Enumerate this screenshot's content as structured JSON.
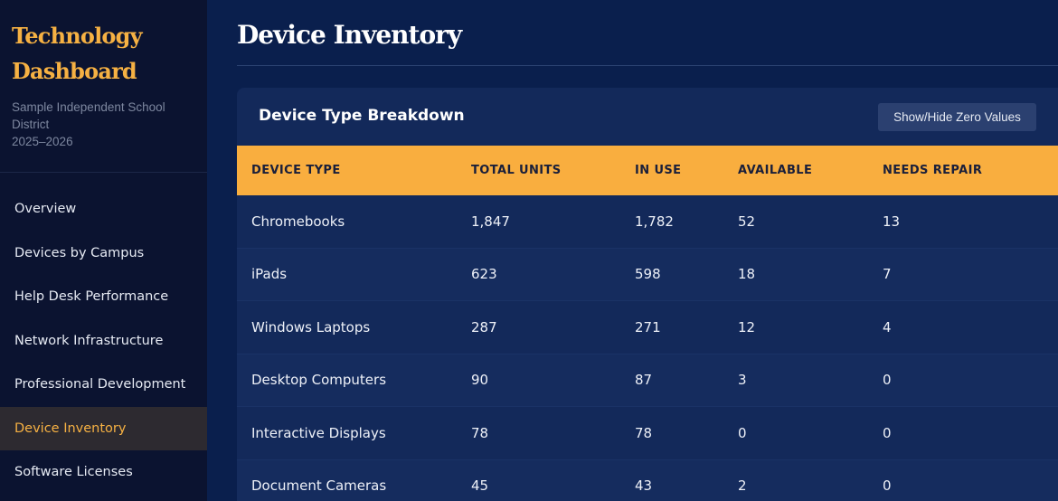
{
  "sidebar": {
    "brand_title_line1": "Technology",
    "brand_title_line2": "Dashboard",
    "district_line1": "Sample Independent School",
    "district_line2": "District",
    "year": "2025–2026",
    "items": [
      {
        "label": "Overview",
        "active": false
      },
      {
        "label": "Devices by Campus",
        "active": false
      },
      {
        "label": "Help Desk Performance",
        "active": false
      },
      {
        "label": "Network Infrastructure",
        "active": false
      },
      {
        "label": "Professional Development",
        "active": false
      },
      {
        "label": "Device Inventory",
        "active": true
      },
      {
        "label": "Software Licenses",
        "active": false
      }
    ]
  },
  "main": {
    "page_title": "Device Inventory",
    "card": {
      "title": "Device Type Breakdown",
      "toggle_button": "Show/Hide Zero Values",
      "columns": [
        "DEVICE TYPE",
        "TOTAL UNITS",
        "IN USE",
        "AVAILABLE",
        "NEEDS REPAIR"
      ],
      "rows": [
        [
          "Chromebooks",
          "1,847",
          "1,782",
          "52",
          "13"
        ],
        [
          "iPads",
          "623",
          "598",
          "18",
          "7"
        ],
        [
          "Windows Laptops",
          "287",
          "271",
          "12",
          "4"
        ],
        [
          "Desktop Computers",
          "90",
          "87",
          "3",
          "0"
        ],
        [
          "Interactive Displays",
          "78",
          "78",
          "0",
          "0"
        ],
        [
          "Document Cameras",
          "45",
          "43",
          "2",
          "0"
        ]
      ]
    }
  },
  "colors": {
    "accent": "#f9ae3f",
    "background": "#0a1f4d",
    "sidebar": "#0b1330",
    "card": "#13295a"
  }
}
